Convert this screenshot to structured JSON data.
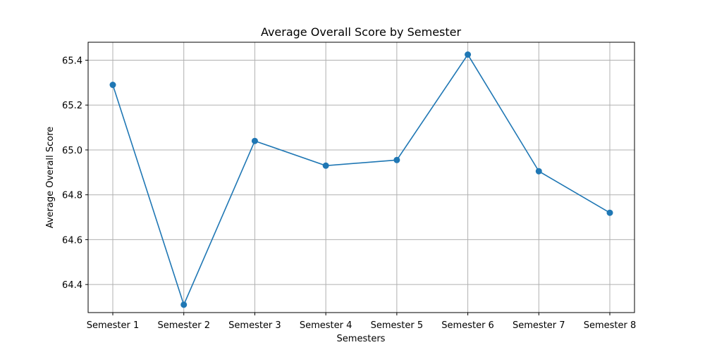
{
  "chart_data": {
    "type": "line",
    "title": "Average Overall Score by Semester",
    "xlabel": "Semesters",
    "ylabel": "Average Overall Score",
    "categories": [
      "Semester 1",
      "Semester 2",
      "Semester 3",
      "Semester 4",
      "Semester 5",
      "Semester 6",
      "Semester 7",
      "Semester 8"
    ],
    "series": [
      {
        "values": [
          65.29,
          64.31,
          65.04,
          64.93,
          64.955,
          65.425,
          64.905,
          64.72
        ]
      }
    ],
    "ylim": [
      64.275,
      65.48
    ],
    "yticks": [
      64.4,
      64.6,
      64.8,
      65.0,
      65.2,
      65.4
    ],
    "ytick_labels": [
      "64.4",
      "64.6",
      "64.8",
      "65.0",
      "65.2",
      "65.4"
    ],
    "grid": true,
    "line_color": "#1f77b4",
    "marker": "circle"
  }
}
